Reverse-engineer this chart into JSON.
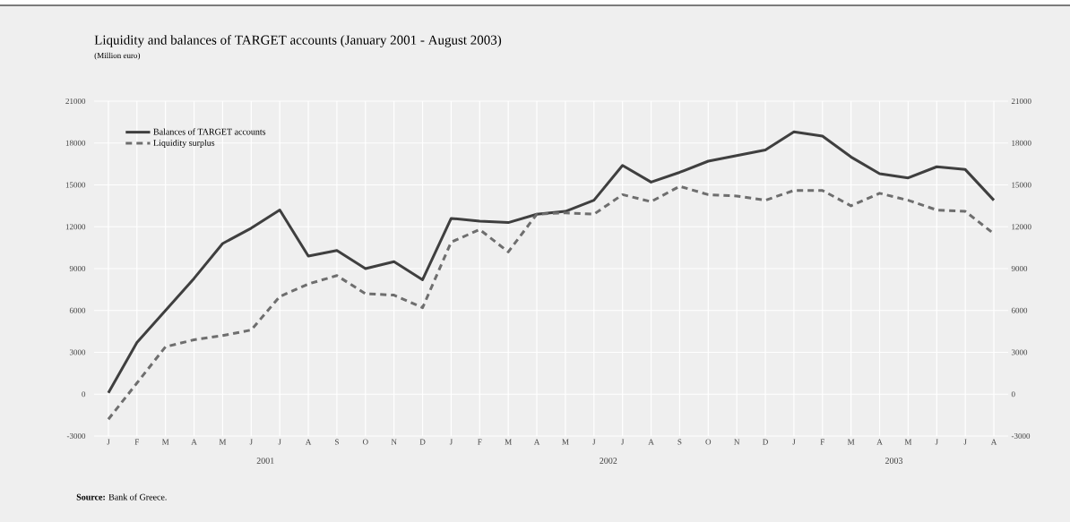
{
  "chart_data": {
    "type": "line",
    "title": "Liquidity and balances of TARGET accounts (January 2001 - August 2003)",
    "subtitle": "(Million euro)",
    "categories": [
      "J",
      "F",
      "M",
      "A",
      "M",
      "J",
      "J",
      "A",
      "S",
      "O",
      "N",
      "D",
      "J",
      "F",
      "M",
      "A",
      "M",
      "J",
      "J",
      "A",
      "S",
      "O",
      "N",
      "D",
      "J",
      "F",
      "M",
      "A",
      "M",
      "J",
      "J",
      "A"
    ],
    "series": [
      {
        "name": "Balances of TARGET accounts",
        "color": "#3f3f3f",
        "line_style": "solid",
        "values": [
          100,
          3700,
          6000,
          8300,
          10800,
          11900,
          13200,
          9900,
          10300,
          9000,
          9500,
          8200,
          12600,
          12400,
          12300,
          12900,
          13100,
          13900,
          16400,
          15200,
          15900,
          16700,
          17100,
          17500,
          18800,
          18500,
          17000,
          15800,
          15500,
          16300,
          16100,
          13900
        ]
      },
      {
        "name": "Liquidity surplus",
        "color": "#6e6e6e",
        "line_style": "dashed",
        "values": [
          -1800,
          800,
          3400,
          3900,
          4200,
          4600,
          7000,
          7900,
          8500,
          7200,
          7100,
          6200,
          10900,
          11800,
          10200,
          12900,
          13000,
          12900,
          14300,
          13800,
          14900,
          14300,
          14200,
          13900,
          14600,
          14600,
          13500,
          14400,
          13900,
          13200,
          13100,
          11500
        ]
      }
    ],
    "ylim": [
      -3000,
      21000
    ],
    "yticks": [
      -3000,
      0,
      3000,
      6000,
      9000,
      12000,
      15000,
      18000,
      21000
    ],
    "y2lim": [
      -3000,
      21000
    ],
    "y2ticks": [
      -3000,
      0,
      3000,
      6000,
      9000,
      12000,
      15000,
      18000,
      21000
    ],
    "grid": true,
    "legend": "top left",
    "marker": "none",
    "annotations": [
      "2001",
      "2002",
      "2003",
      "**Source:** Bank of Greece."
    ]
  }
}
